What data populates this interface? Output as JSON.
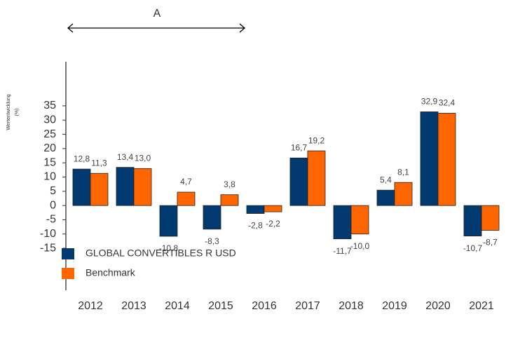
{
  "chart_data": {
    "type": "bar",
    "y_axis_label": [
      "Wertentwicklung",
      "(%)"
    ],
    "annotation": "A",
    "categories": [
      "2012",
      "2013",
      "2014",
      "2015",
      "2016",
      "2017",
      "2018",
      "2019",
      "2020",
      "2021"
    ],
    "series": [
      {
        "name": "GLOBAL CONVERTIBLES R USD",
        "color": "#003a70",
        "values": [
          12.8,
          13.4,
          -10.8,
          -8.3,
          -2.8,
          16.7,
          -11.7,
          5.4,
          32.9,
          -10.7
        ],
        "value_labels": [
          "12,8",
          "13,4",
          "-10,8",
          "-8,3",
          "-2,8",
          "16,7",
          "-11,7",
          "5,4",
          "32,9",
          "-10,7"
        ]
      },
      {
        "name": "Benchmark",
        "color": "#ff6600",
        "values": [
          11.3,
          13.0,
          4.7,
          3.8,
          -2.2,
          19.2,
          -10.0,
          8.1,
          32.4,
          -8.7
        ],
        "value_labels": [
          "11,3",
          "13,0",
          "4,7",
          "3,8",
          "-2,2",
          "19,2",
          "-10,0",
          "8,1",
          "32,4",
          "-8,7"
        ]
      }
    ],
    "ylim": [
      -30,
      50
    ],
    "yticks": [
      35,
      30,
      25,
      20,
      15,
      10,
      5,
      0,
      -5,
      -10,
      -15
    ],
    "grid": false,
    "legend": "bottom"
  }
}
